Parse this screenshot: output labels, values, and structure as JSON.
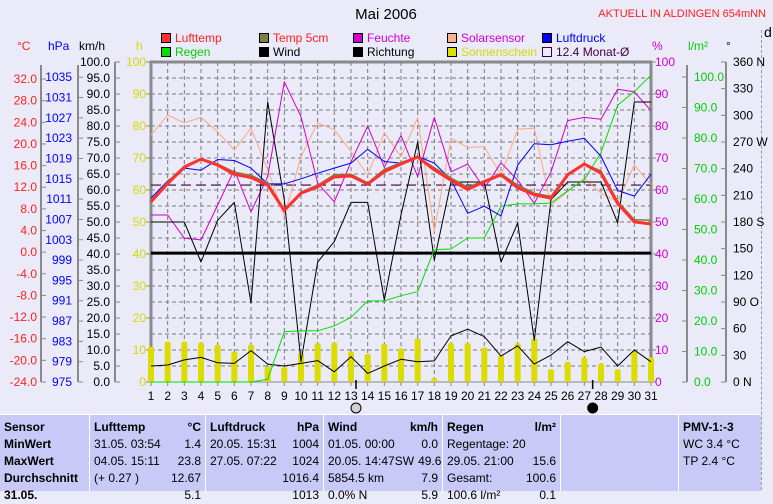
{
  "header": {
    "title": "Mai 2006",
    "station": "AKTUELL IN ALDINGEN 654mNN",
    "corner_char": "d"
  },
  "legend": [
    {
      "label": "Lufttemp",
      "swatch": "#ff3030",
      "text_color": "#ff2020"
    },
    {
      "label": "Temp 5cm",
      "swatch": "#7f7f3f",
      "text_color": "#ff2020"
    },
    {
      "label": "Feuchte",
      "swatch": "#d000d0",
      "text_color": "#d000d0"
    },
    {
      "label": "Solarsensor",
      "swatch": "#ffb090",
      "text_color": "#d000d0"
    },
    {
      "label": "Luftdruck",
      "swatch": "#0000ff",
      "text_color": "#0000ff"
    },
    {
      "label": "Regen",
      "swatch": "#00e000",
      "text_color": "#00d000"
    },
    {
      "label": "Wind",
      "swatch": "#000000",
      "text_color": "#000000"
    },
    {
      "label": "Richtung",
      "swatch": "#000000",
      "text_color": "#000000"
    },
    {
      "label": "Sonnenschein",
      "swatch": "#e0e000",
      "text_color": "#d8d800"
    },
    {
      "label": "12.4 Monat-Ø",
      "swatch": "none",
      "text_color": "#400040"
    }
  ],
  "axis_headers": {
    "temp": "°C",
    "pressure": "hPa",
    "wind": "km/h",
    "sun": "h",
    "humidity": "%",
    "rain": "l/m²",
    "direction": "°"
  },
  "chart_data": {
    "type": "line",
    "title": "Mai 2006",
    "x": [
      1,
      2,
      3,
      4,
      5,
      6,
      7,
      8,
      9,
      10,
      11,
      12,
      13,
      14,
      15,
      16,
      17,
      18,
      19,
      20,
      21,
      22,
      23,
      24,
      25,
      26,
      27,
      28,
      29,
      30,
      31
    ],
    "x_tick_labels": [
      "1",
      "2",
      "3",
      "4",
      "5",
      "6",
      "7",
      "8",
      "9",
      "10",
      "11",
      "12",
      "13",
      "14",
      "15",
      "16",
      "17",
      "18",
      "19",
      "20",
      "21",
      "22",
      "23",
      "24",
      "25",
      "26",
      "27",
      "28",
      "29",
      "30",
      "31"
    ],
    "axes": {
      "temp": {
        "range": [
          -24,
          32
        ],
        "ticks": [
          "32.0",
          "28.0",
          "24.0",
          "20.0",
          "16.0",
          "12.0",
          "8.0",
          "4.0",
          "0.0",
          "-4.0",
          "-8.0",
          "-12.0",
          "-16.0",
          "-20.0",
          "-24.0"
        ],
        "color": "#ff2020"
      },
      "pressure": {
        "range": [
          975,
          1035
        ],
        "ticks": [
          "1035",
          "1031",
          "1027",
          "1023",
          "1019",
          "1015",
          "1011",
          "1007",
          "1003",
          "999",
          "995",
          "991",
          "987",
          "983",
          "979",
          "975"
        ],
        "color": "#0000ff"
      },
      "wind": {
        "range": [
          0,
          100
        ],
        "ticks": [
          "100.0",
          "95.0",
          "90.0",
          "85.0",
          "80.0",
          "75.0",
          "70.0",
          "65.0",
          "60.0",
          "55.0",
          "50.0",
          "45.0",
          "40.0",
          "35.0",
          "30.0",
          "25.0",
          "20.0",
          "15.0",
          "10.0",
          "5.0",
          "0.0"
        ],
        "color": "#000000"
      },
      "sun": {
        "range": [
          0,
          100
        ],
        "ticks": [
          "100",
          "90",
          "80",
          "70",
          "60",
          "50",
          "40",
          "30",
          "20",
          "10",
          "0"
        ],
        "color": "#d8d800"
      },
      "humidity": {
        "range": [
          0,
          100
        ],
        "ticks": [
          "100",
          "90",
          "80",
          "70",
          "60",
          "50",
          "40",
          "30",
          "20",
          "10",
          "0"
        ],
        "color": "#d000d0"
      },
      "rain": {
        "range": [
          0,
          100
        ],
        "ticks": [
          "100.0",
          "90.0",
          "80.0",
          "70.0",
          "60.0",
          "50.0",
          "40.0",
          "30.0",
          "20.0",
          "10.0",
          "0.0"
        ],
        "color": "#00d000"
      },
      "direction": {
        "range": [
          0,
          360
        ],
        "ticks": [
          "360 N",
          "330",
          "300",
          "270 W",
          "240",
          "210",
          "180 S",
          "150",
          "120",
          "90  O",
          "60",
          "30",
          "0    N"
        ],
        "color": "#000000"
      }
    },
    "series": [
      {
        "name": "Lufttemp",
        "axis": "temp",
        "color": "#ff3030",
        "values": [
          9.3,
          12.7,
          15.7,
          17.2,
          16.1,
          14.4,
          13.8,
          12.4,
          7.7,
          10.9,
          12.1,
          13.9,
          14.1,
          12.6,
          14.9,
          16.3,
          17.6,
          15.2,
          13.3,
          11.6,
          13.0,
          14.3,
          11.9,
          10.6,
          10.0,
          14.3,
          16.3,
          14.6,
          9.0,
          5.6,
          5.2
        ]
      },
      {
        "name": "Temp 5cm",
        "axis": "temp",
        "color": "#7f7f3f",
        "values": [
          9.5,
          13.0,
          15.9,
          17.3,
          16.3,
          14.8,
          14.2,
          12.8,
          7.9,
          11.1,
          12.4,
          14.3,
          14.4,
          12.8,
          15.3,
          16.6,
          17.6,
          15.6,
          13.7,
          12.0,
          13.2,
          14.5,
          12.4,
          10.9,
          10.3,
          14.5,
          16.3,
          15.0,
          9.4,
          6.0,
          5.9
        ]
      },
      {
        "name": "Luftdruck",
        "axis": "pressure",
        "color": "#0000ff",
        "values": [
          1011.2,
          1014.6,
          1017.1,
          1016.7,
          1018.8,
          1018.6,
          1017.1,
          1014.0,
          1014.0,
          1015.0,
          1016.1,
          1017.1,
          1018.1,
          1020.8,
          1018.4,
          1018.1,
          1019.4,
          1018.1,
          1014.8,
          1008.2,
          1009.6,
          1007.7,
          1017.7,
          1021.9,
          1021.7,
          1022.4,
          1023.0,
          1019.4,
          1012.7,
          1011.6,
          1015.9
        ]
      },
      {
        "name": "Feuchte",
        "axis": "humidity",
        "color": "#d000d0",
        "values": [
          52.2,
          52.2,
          44.9,
          44.4,
          55.3,
          66.3,
          53.2,
          64.2,
          93.8,
          82.9,
          62.1,
          56.3,
          68.8,
          80.0,
          67.1,
          77.0,
          64.2,
          82.7,
          65.7,
          68.1,
          60.5,
          68.5,
          63.1,
          55.8,
          65.7,
          81.7,
          82.7,
          82.1,
          91.5,
          90.7,
          84.8
        ]
      },
      {
        "name": "Solarsensor",
        "axis": "humidity",
        "color": "#ffa880",
        "values": [
          77.2,
          83.4,
          81.0,
          82.7,
          78.2,
          72.5,
          79.3,
          66.3,
          51.9,
          70.4,
          81.0,
          78.8,
          72.0,
          64.7,
          77.9,
          70.4,
          82.7,
          47.0,
          76.2,
          73.3,
          73.5,
          64.7,
          79.0,
          79.3,
          55.3,
          59.5,
          63.7,
          59.0,
          56.3,
          67.8,
          61.6
        ]
      },
      {
        "name": "Richtung",
        "axis": "direction",
        "color": "#000000",
        "values": [
          180,
          180,
          180,
          135,
          182,
          202,
          89,
          315,
          205,
          23,
          135,
          158,
          202,
          202,
          92,
          188,
          270,
          137,
          225,
          225,
          225,
          135,
          179,
          47,
          205,
          225,
          225,
          225,
          179,
          315,
          315
        ]
      },
      {
        "name": "Wind",
        "axis": "wind",
        "color": "#000000",
        "values": [
          5.0,
          5.3,
          6.9,
          7.7,
          6.0,
          5.8,
          9.8,
          5.6,
          5.0,
          5.8,
          6.7,
          3.2,
          7.9,
          2.7,
          5.0,
          7.1,
          6.3,
          6.6,
          14.4,
          16.5,
          14.2,
          8.1,
          11.3,
          5.6,
          8.4,
          12.6,
          9.5,
          10.9,
          5.0,
          10.0,
          6.3
        ]
      },
      {
        "name": "Regen",
        "axis": "rain",
        "color": "#00e000",
        "cumulative": true,
        "values": [
          0,
          0,
          0,
          0,
          0,
          0,
          0,
          0.9,
          16.5,
          16.8,
          16.8,
          18.4,
          21.2,
          26.6,
          26.6,
          28.3,
          29.6,
          43.4,
          43.6,
          47.2,
          47.2,
          57.6,
          58.4,
          58.4,
          58.7,
          62.7,
          66.3,
          75.2,
          90.8,
          95.2,
          100.6
        ]
      },
      {
        "name": "Sonnenschein",
        "axis": "sun",
        "type": "bar",
        "color": "#dcdc00",
        "values": [
          11.0,
          12.6,
          12.6,
          12.3,
          11.6,
          9.5,
          11.6,
          4.8,
          4.6,
          9.0,
          12.1,
          12.3,
          9.5,
          8.8,
          11.9,
          10.5,
          13.6,
          1.2,
          12.1,
          12.1,
          10.8,
          8.4,
          12.1,
          13.6,
          4.0,
          6.3,
          7.7,
          5.8,
          4.0,
          9.5,
          7.7
        ]
      }
    ],
    "reference_lines": [
      {
        "name": "12.4 Monat-Ø",
        "axis": "temp",
        "value": 12.4,
        "color": "#400040",
        "style": "dashed"
      },
      {
        "name": "Richtung mean",
        "axis": "direction",
        "value": 145,
        "color": "#000000",
        "style": "thick"
      }
    ],
    "moon_phases": [
      {
        "day": 13.3,
        "phase": "full"
      },
      {
        "day": 27.5,
        "phase": "new"
      }
    ],
    "grid": true,
    "legend_position": "top"
  },
  "table": {
    "columns": [
      {
        "header": "Sensor",
        "unit": "",
        "rows": [
          [
            "MinWert",
            ""
          ],
          [
            "MaxWert",
            ""
          ],
          [
            "Durchschnitt",
            ""
          ],
          [
            "31.05.",
            ""
          ]
        ]
      },
      {
        "header": "Lufttemp",
        "unit": "°C",
        "rows": [
          [
            "31.05.  03:54",
            "1.4"
          ],
          [
            "04.05.  15:11",
            "23.8"
          ],
          [
            "(+ 0.27 )",
            "12.67"
          ],
          [
            "",
            "5.1"
          ]
        ]
      },
      {
        "header": "Luftdruck",
        "unit": "hPa",
        "rows": [
          [
            "20.05.  15:31",
            "1004"
          ],
          [
            "27.05.  07:22",
            "1024"
          ],
          [
            "",
            "1016.4"
          ],
          [
            "",
            "1013"
          ]
        ]
      },
      {
        "header": "Wind",
        "unit": "km/h",
        "rows": [
          [
            "01.05.  00:00",
            "0.0"
          ],
          [
            "20.05.  14:47SW",
            "49.6"
          ],
          [
            "5854.5 km",
            "7.9"
          ],
          [
            "0.0% N",
            "5.9"
          ]
        ]
      },
      {
        "header": "Regen",
        "unit": "l/m²",
        "rows": [
          [
            "Regentage: 20",
            ""
          ],
          [
            "29.05.  21:00",
            "15.6"
          ],
          [
            "Gesamt:",
            "100.6"
          ],
          [
            "100.6 l/m²",
            "0.1"
          ]
        ]
      },
      {
        "header": "",
        "unit": "",
        "rows": []
      },
      {
        "header": "PMV-1:-3",
        "unit": "",
        "rows": [
          [
            "WC 3.4 °C",
            ""
          ],
          [
            "TP 2.4 °C",
            ""
          ]
        ]
      }
    ]
  }
}
